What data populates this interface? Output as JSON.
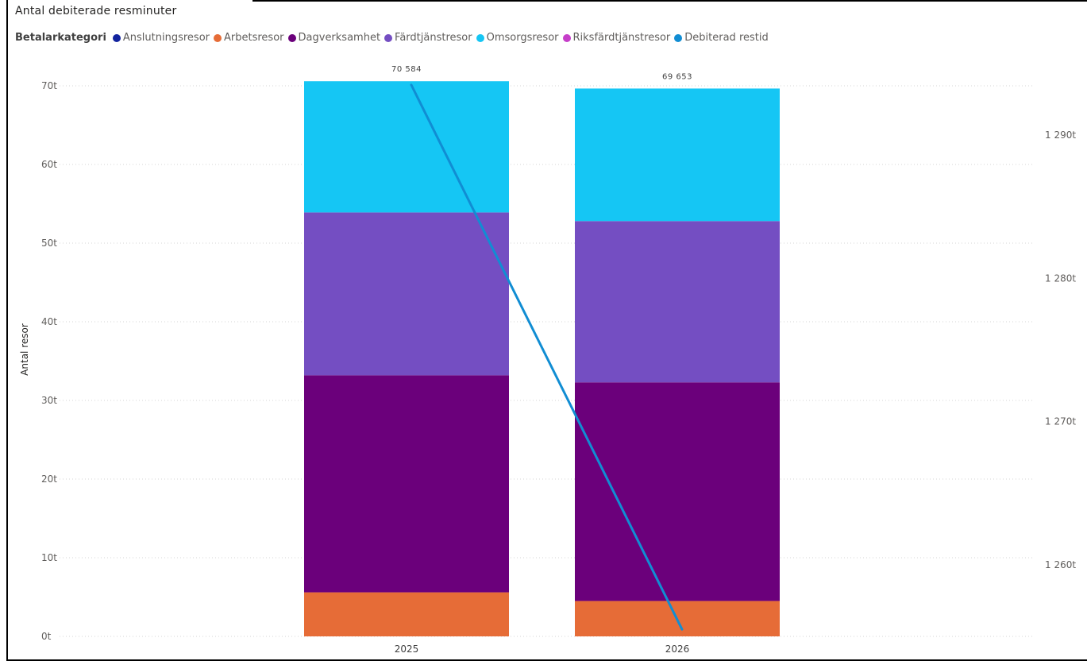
{
  "title": "Antal debiterade resminuter",
  "legend": {
    "title": "Betalarkategori",
    "items": [
      {
        "label": "Anslutningsresor",
        "color": "#12239e"
      },
      {
        "label": "Arbetsresor",
        "color": "#e66c37"
      },
      {
        "label": "Dagverksamhet",
        "color": "#6b007b"
      },
      {
        "label": "Färdtjänstresor",
        "color": "#744ec2"
      },
      {
        "label": "Omsorgsresor",
        "color": "#15c6f4"
      },
      {
        "label": "Riksfärdtjänstresor",
        "color": "#c63ec9"
      },
      {
        "label": "Debiterad restid",
        "color": "#118dd3"
      }
    ]
  },
  "chart_data": {
    "type": "bar",
    "stacked": true,
    "categories": [
      "2025",
      "2026"
    ],
    "series": [
      {
        "name": "Arbetsresor",
        "color": "#e66c37",
        "values": [
          5600,
          4500
        ]
      },
      {
        "name": "Dagverksamhet",
        "color": "#6b007b",
        "values": [
          27600,
          27800
        ]
      },
      {
        "name": "Färdtjänstresor",
        "color": "#744ec2",
        "values": [
          20700,
          20500
        ]
      },
      {
        "name": "Omsorgsresor",
        "color": "#15c6f4",
        "values": [
          16684,
          16853
        ]
      }
    ],
    "totals": [
      70584,
      69653
    ],
    "total_labels": [
      "70 584",
      "69 653"
    ],
    "line": {
      "name": "Debiterad restid",
      "color": "#118dd3",
      "values": [
        1293500,
        1255500
      ],
      "axis": "secondary"
    },
    "ylabel": "Antal resor",
    "ylim": [
      0,
      72000
    ],
    "yticks": [
      0,
      10000,
      20000,
      30000,
      40000,
      50000,
      60000,
      70000
    ],
    "ytick_labels": [
      "0t",
      "10t",
      "20t",
      "30t",
      "40t",
      "50t",
      "60t",
      "70t"
    ],
    "y2lim": [
      1254700,
      1295500
    ],
    "y2ticks": [
      1260000,
      1270000,
      1280000,
      1290000
    ],
    "y2tick_labels": [
      "1 260t",
      "1 270t",
      "1 280t",
      "1 290t"
    ],
    "grid": true
  }
}
